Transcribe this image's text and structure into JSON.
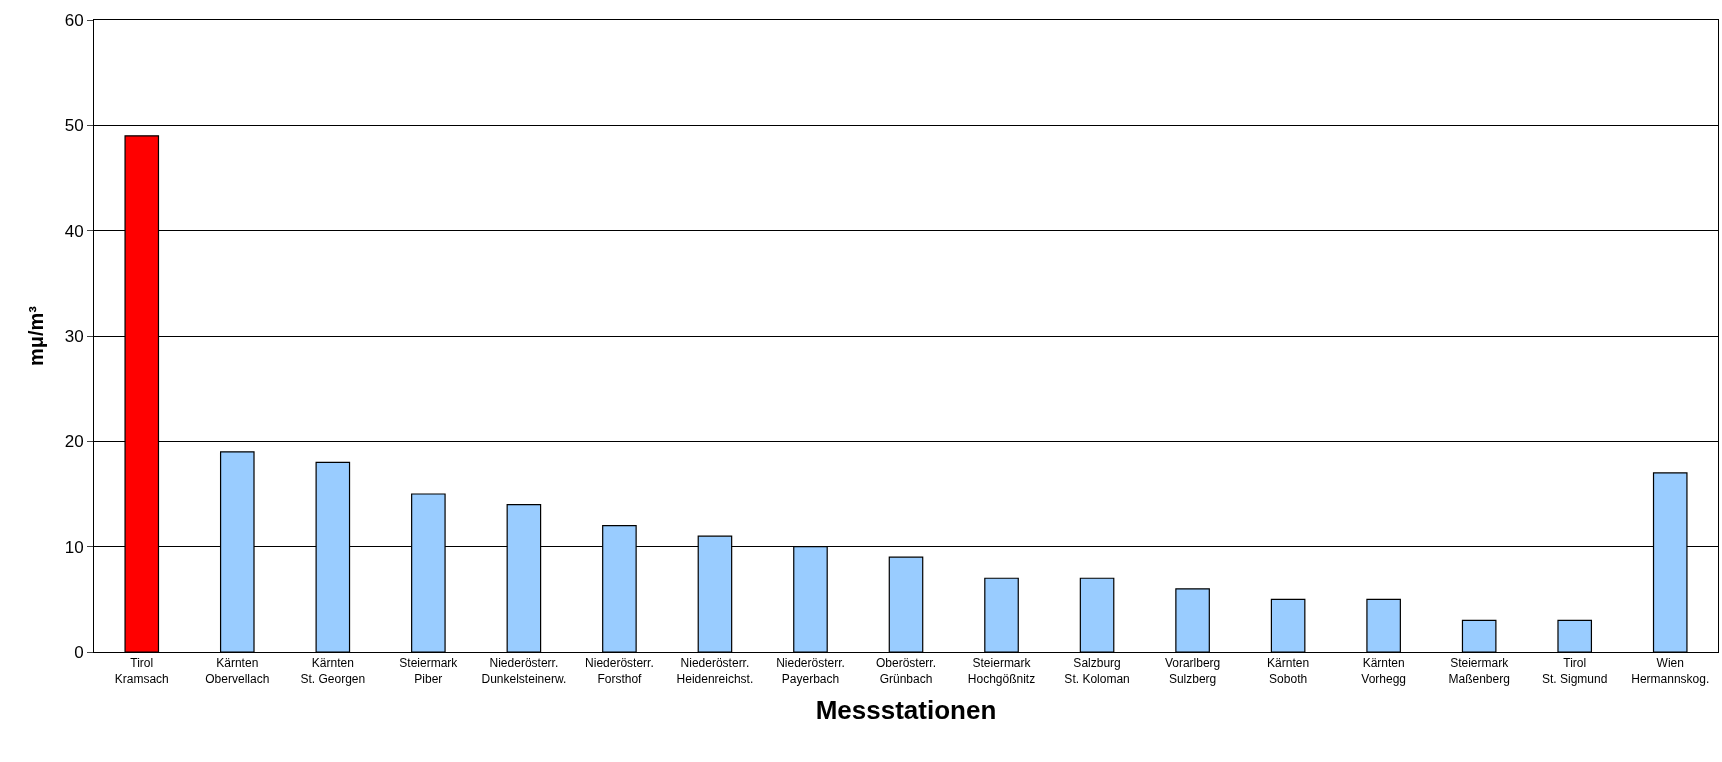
{
  "chart_data": {
    "type": "bar",
    "xlabel": "Messstationen",
    "ylabel": "mμ/m³",
    "categories": [
      "Tirol\nKramsach",
      "Kärnten\nObervellach",
      "Kärnten\nSt. Georgen",
      "Steiermark\nPiber",
      "Niederösterr.\nDunkelsteinerw.",
      "Niederösterr.\nForsthof",
      "Niederösterr.\nHeidenreichst.",
      "Niederösterr.\nPayerbach",
      "Oberösterr.\nGrünbach",
      "Steiermark\nHochgößnitz",
      "Salzburg\nSt. Koloman",
      "Vorarlberg\nSulzberg",
      "Kärnten\nSoboth",
      "Kärnten\nVorhegg",
      "Steiermark\nMaßenberg",
      "Tirol\nSt. Sigmund",
      "Wien\nHermannskog."
    ],
    "values": [
      49,
      19,
      18,
      15,
      14,
      12,
      11,
      10,
      9,
      7,
      7,
      6,
      5,
      5,
      3,
      3,
      17
    ],
    "colors": [
      "#ff0000",
      "#99ccff",
      "#99ccff",
      "#99ccff",
      "#99ccff",
      "#99ccff",
      "#99ccff",
      "#99ccff",
      "#99ccff",
      "#99ccff",
      "#99ccff",
      "#99ccff",
      "#99ccff",
      "#99ccff",
      "#99ccff",
      "#99ccff",
      "#99ccff"
    ],
    "ylim": [
      0,
      60
    ],
    "yticks": [
      0,
      10,
      20,
      30,
      40,
      50,
      60
    ],
    "grid": "y",
    "legend": false
  }
}
